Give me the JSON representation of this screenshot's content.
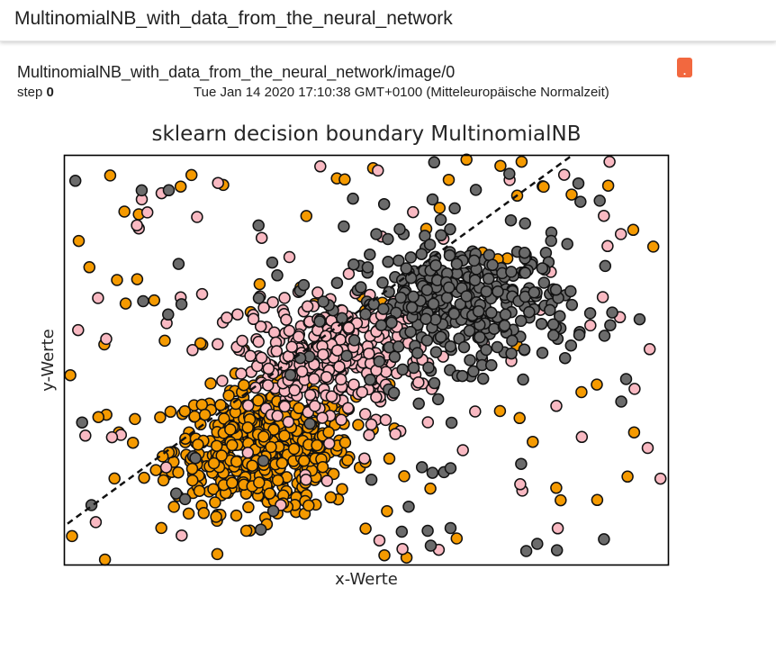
{
  "app": {
    "title": "MultinomialNB_with_data_from_the_neural_network"
  },
  "card": {
    "title": "MultinomialNB_with_data_from_the_neural_network/image/0",
    "step_label": "step",
    "step_value": "0",
    "timestamp": "Tue Jan 14 2020 17:10:38 GMT+0100 (Mitteleuropäische Normalzeit)",
    "fullscreen_label": "."
  },
  "colors": {
    "orange": "#f59a00",
    "pink": "#f9b9c2",
    "gray": "#6b6b6b",
    "fullscreen_button": "#f2683f"
  },
  "chart_data": {
    "type": "scatter",
    "title": "sklearn decision boundary MultinomialNB",
    "xlabel": "x-Werte",
    "ylabel": "y-Werte",
    "ticks_shown": false,
    "grid": false,
    "xlim": [
      0,
      1
    ],
    "ylim": [
      0,
      1
    ],
    "boundary": {
      "style": "dashed",
      "from": [
        0,
        0.1
      ],
      "to": [
        0.84,
        1.0
      ]
    },
    "series": [
      {
        "color": "orange",
        "cluster": {
          "cx": 0.33,
          "cy": 0.28,
          "sx": 0.075,
          "sy": 0.075,
          "n": 520
        },
        "scatter_n": 75
      },
      {
        "color": "pink",
        "cluster": {
          "cx": 0.44,
          "cy": 0.5,
          "sx": 0.08,
          "sy": 0.07,
          "n": 330
        },
        "scatter_n": 75
      },
      {
        "color": "gray",
        "cluster": {
          "cx": 0.66,
          "cy": 0.64,
          "sx": 0.09,
          "sy": 0.075,
          "n": 360
        },
        "scatter_n": 65
      }
    ]
  }
}
